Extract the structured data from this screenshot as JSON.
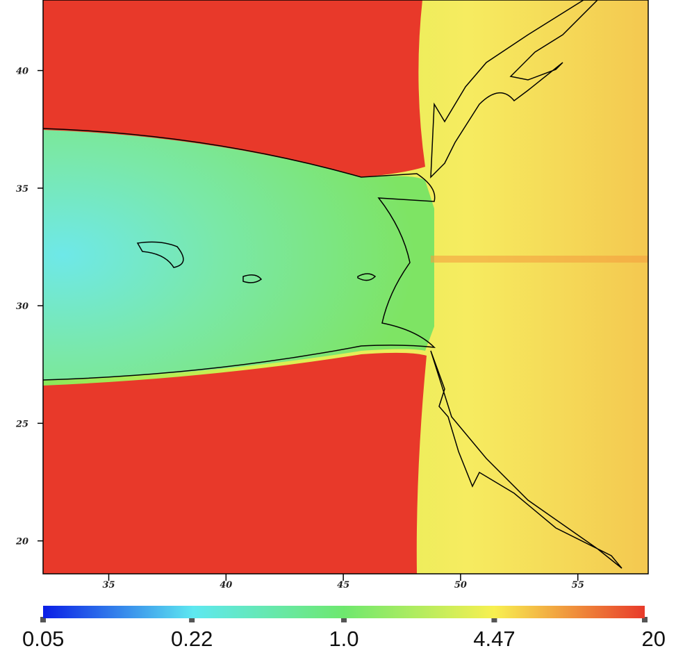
{
  "chart_data": {
    "type": "heatmap",
    "xlim": [
      32.2,
      58
    ],
    "ylim": [
      18.6,
      43
    ],
    "xticks": [
      35,
      40,
      45,
      50,
      55
    ],
    "yticks": [
      20,
      25,
      30,
      35,
      40
    ],
    "colorbar": {
      "scale": "log",
      "lim": [
        0.05,
        20
      ],
      "ticks": [
        0.05,
        0.22,
        {
          "value": 1,
          "label": "1.0"
        },
        4.47,
        20
      ],
      "colors": [
        "#0a1ee6",
        "#5ee8f0",
        "#6ee86e",
        "#f8f050",
        "#e83a2a"
      ]
    }
  }
}
